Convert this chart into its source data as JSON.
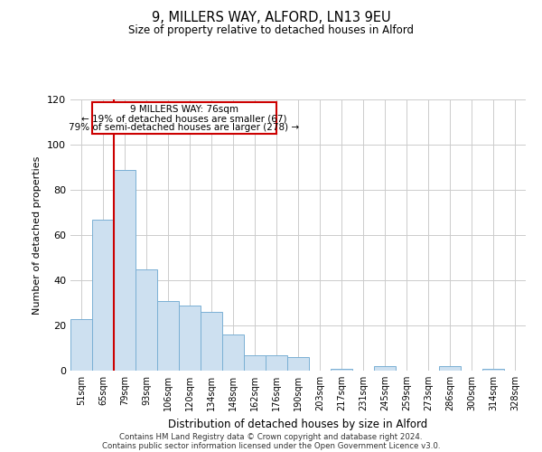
{
  "title": "9, MILLERS WAY, ALFORD, LN13 9EU",
  "subtitle": "Size of property relative to detached houses in Alford",
  "xlabel": "Distribution of detached houses by size in Alford",
  "ylabel": "Number of detached properties",
  "categories": [
    "51sqm",
    "65sqm",
    "79sqm",
    "93sqm",
    "106sqm",
    "120sqm",
    "134sqm",
    "148sqm",
    "162sqm",
    "176sqm",
    "190sqm",
    "203sqm",
    "217sqm",
    "231sqm",
    "245sqm",
    "259sqm",
    "273sqm",
    "286sqm",
    "300sqm",
    "314sqm",
    "328sqm"
  ],
  "values": [
    23,
    67,
    89,
    45,
    31,
    29,
    26,
    16,
    7,
    7,
    6,
    0,
    1,
    0,
    2,
    0,
    0,
    2,
    0,
    1,
    0
  ],
  "bar_color": "#cde0f0",
  "bar_edge_color": "#7ab0d4",
  "grid_color": "#cccccc",
  "background_color": "#ffffff",
  "annotation_box_color": "#ffffff",
  "annotation_box_edge": "#cc0000",
  "reference_line_color": "#cc0000",
  "reference_line_x": 1.5,
  "ylim": [
    0,
    120
  ],
  "yticks": [
    0,
    20,
    40,
    60,
    80,
    100,
    120
  ],
  "annotation_title": "9 MILLERS WAY: 76sqm",
  "annotation_line1": "← 19% of detached houses are smaller (67)",
  "annotation_line2": "79% of semi-detached houses are larger (278) →",
  "footer_line1": "Contains HM Land Registry data © Crown copyright and database right 2024.",
  "footer_line2": "Contains public sector information licensed under the Open Government Licence v3.0."
}
